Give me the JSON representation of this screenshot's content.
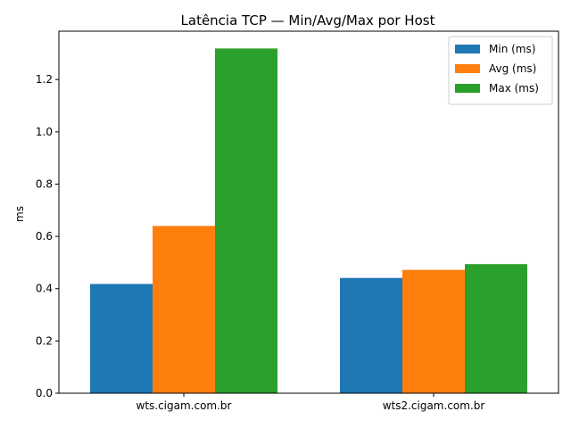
{
  "chart_data": {
    "type": "bar",
    "title": "Latência TCP — Min/Avg/Max por Host",
    "xlabel": "",
    "ylabel": "ms",
    "categories": [
      "wts.cigam.com.br",
      "wts2.cigam.com.br"
    ],
    "series": [
      {
        "name": "Min (ms)",
        "values": [
          0.418,
          0.441
        ],
        "color": "#1f77b4"
      },
      {
        "name": "Avg (ms)",
        "values": [
          0.64,
          0.472
        ],
        "color": "#ff7f0e"
      },
      {
        "name": "Max (ms)",
        "values": [
          1.319,
          0.494
        ],
        "color": "#2ca02c"
      }
    ],
    "ylim": [
      0,
      1.385
    ],
    "yticks": [
      "0.0",
      "0.2",
      "0.4",
      "0.6",
      "0.8",
      "1.0",
      "1.2"
    ],
    "legend_position": "top-right",
    "grid": false
  }
}
